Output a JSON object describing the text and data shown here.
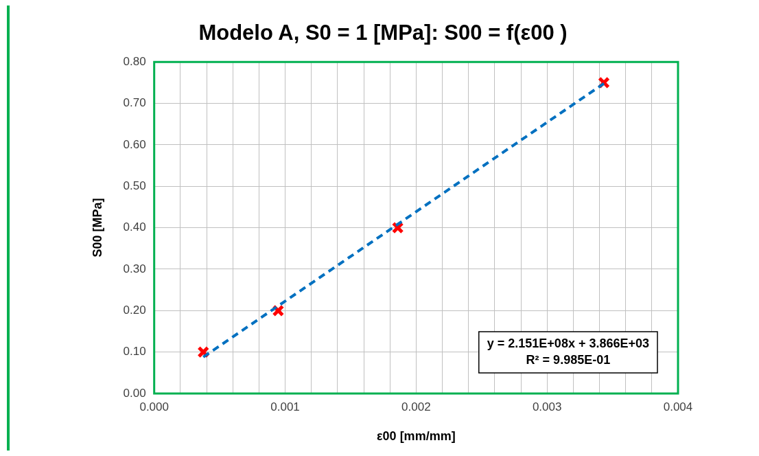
{
  "chart_data": {
    "type": "scatter",
    "title": "Modelo A, S0 = 1 [MPa]: S00 = f(ε00 )",
    "xlabel": "ε00 [mm/mm]",
    "ylabel": "S00 [MPa]",
    "x": [
      0.000375,
      0.000947,
      0.00186,
      0.003434
    ],
    "series": [
      {
        "color": "#ff0000",
        "marker": "cross",
        "values": [
          0.1,
          0.2,
          0.4,
          0.75
        ]
      },
      {
        "type": "line",
        "color": "#0070c0",
        "line_style": "dashed",
        "marker": "none",
        "x": [
          0.000375,
          0.003434
        ],
        "values": [
          0.088,
          0.748
        ]
      }
    ],
    "xlim": [
      0,
      0.004
    ],
    "xticks": [
      {
        "value": 0,
        "label": "0.000"
      },
      {
        "value": 0.0002,
        "label": null
      },
      {
        "value": 0.0004,
        "label": null
      },
      {
        "value": 0.0006,
        "label": null
      },
      {
        "value": 0.0008,
        "label": null
      },
      {
        "value": 0.001,
        "label": "0.001"
      },
      {
        "value": 0.0012,
        "label": null
      },
      {
        "value": 0.0014,
        "label": null
      },
      {
        "value": 0.0016,
        "label": null
      },
      {
        "value": 0.0018,
        "label": null
      },
      {
        "value": 0.002,
        "label": "0.002"
      },
      {
        "value": 0.0022,
        "label": null
      },
      {
        "value": 0.0024,
        "label": null
      },
      {
        "value": 0.0026,
        "label": null
      },
      {
        "value": 0.0028,
        "label": null
      },
      {
        "value": 0.003,
        "label": "0.003"
      },
      {
        "value": 0.0032,
        "label": null
      },
      {
        "value": 0.0034,
        "label": null
      },
      {
        "value": 0.0036,
        "label": null
      },
      {
        "value": 0.0038,
        "label": null
      },
      {
        "value": 0.004,
        "label": "0.004"
      }
    ],
    "ylim": [
      0,
      0.8
    ],
    "yticks": [
      {
        "value": 0,
        "label": "0.00"
      },
      {
        "value": 0.1,
        "label": "0.10"
      },
      {
        "value": 0.2,
        "label": "0.20"
      },
      {
        "value": 0.3,
        "label": "0.30"
      },
      {
        "value": 0.4,
        "label": "0.40"
      },
      {
        "value": 0.5,
        "label": "0.50"
      },
      {
        "value": 0.6,
        "label": "0.60"
      },
      {
        "value": 0.7,
        "label": "0.70"
      },
      {
        "value": 0.8,
        "label": "0.80"
      }
    ],
    "grid": true,
    "legend": false,
    "annotations": [
      "y = 2.151E+08x + 3.866E+03\nR² = 9.985E-01"
    ]
  }
}
